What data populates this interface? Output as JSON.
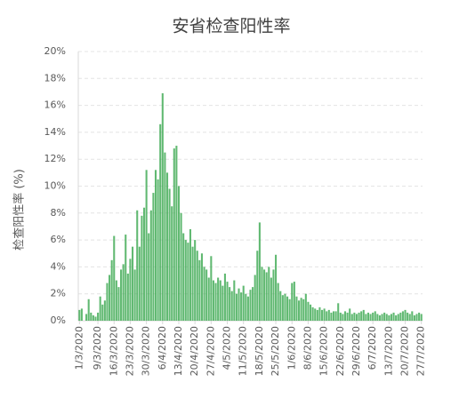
{
  "chart_data": {
    "type": "bar",
    "title": "安省检查阳性率",
    "y_label": "检查阳性率 (%)",
    "categories": [
      "1/3/2020",
      null,
      null,
      null,
      null,
      null,
      null,
      null,
      "9/3/2020",
      null,
      null,
      null,
      null,
      null,
      null,
      "16/3/2020",
      null,
      null,
      null,
      null,
      null,
      null,
      "23/3/2020",
      null,
      null,
      null,
      null,
      null,
      null,
      "30/3/2020",
      null,
      null,
      null,
      null,
      null,
      null,
      "6/4/2020",
      null,
      null,
      null,
      null,
      null,
      null,
      "13/4/2020",
      null,
      null,
      null,
      null,
      null,
      null,
      "20/4/2020",
      null,
      null,
      null,
      null,
      null,
      null,
      "27/4/2020",
      null,
      null,
      null,
      null,
      null,
      null,
      "4/5/2020",
      null,
      null,
      null,
      null,
      null,
      null,
      "11/5/2020",
      null,
      null,
      null,
      null,
      null,
      null,
      "18/5/2020",
      null,
      null,
      null,
      null,
      null,
      null,
      "25/5/2020",
      null,
      null,
      null,
      null,
      null,
      null,
      "1/6/2020",
      null,
      null,
      null,
      null,
      null,
      null,
      "8/6/2020",
      null,
      null,
      null,
      null,
      null,
      null,
      "15/6/2020",
      null,
      null,
      null,
      null,
      null,
      null,
      "22/6/2020",
      null,
      null,
      null,
      null,
      null,
      null,
      "29/6/2020",
      null,
      null,
      null,
      null,
      null,
      null,
      "6/7/2020",
      null,
      null,
      null,
      null,
      null,
      null,
      "13/7/2020",
      null,
      null,
      null,
      null,
      null,
      null,
      "20/7/2020",
      null,
      null,
      null,
      null,
      null,
      null,
      "27/7/2020"
    ],
    "values": [
      0.8,
      0.9,
      0,
      0.5,
      1.6,
      0.6,
      0.4,
      0.3,
      0.6,
      1.8,
      1.2,
      1.5,
      2.8,
      3.4,
      4.5,
      6.3,
      3.0,
      2.5,
      3.8,
      4.2,
      6.4,
      3.5,
      4.6,
      5.5,
      3.8,
      8.2,
      5.5,
      7.8,
      8.4,
      11.2,
      6.5,
      8.2,
      9.5,
      11.2,
      10.5,
      14.6,
      16.9,
      12.5,
      11.0,
      9.8,
      8.5,
      12.8,
      13.0,
      10.0,
      8.0,
      6.5,
      6.0,
      5.8,
      6.8,
      5.5,
      6.0,
      5.2,
      4.5,
      5.0,
      4.0,
      3.8,
      3.2,
      4.8,
      3.0,
      2.8,
      3.2,
      3.0,
      2.6,
      3.5,
      2.9,
      2.5,
      2.2,
      3.0,
      2.0,
      2.4,
      2.1,
      2.6,
      2.0,
      1.8,
      2.3,
      2.5,
      3.4,
      5.2,
      7.3,
      4.0,
      3.8,
      3.6,
      4.0,
      3.2,
      3.8,
      4.9,
      2.8,
      2.2,
      1.9,
      2.0,
      1.8,
      1.6,
      2.8,
      2.9,
      1.8,
      1.5,
      1.7,
      1.6,
      2.0,
      1.4,
      1.2,
      1.0,
      0.9,
      0.8,
      1.0,
      0.8,
      0.9,
      0.7,
      0.8,
      0.6,
      0.7,
      0.7,
      1.3,
      0.6,
      0.5,
      0.7,
      0.6,
      0.9,
      0.5,
      0.6,
      0.5,
      0.6,
      0.7,
      0.8,
      0.5,
      0.6,
      0.5,
      0.6,
      0.7,
      0.5,
      0.4,
      0.5,
      0.6,
      0.5,
      0.4,
      0.5,
      0.6,
      0.4,
      0.5,
      0.6,
      0.7,
      0.8,
      0.6,
      0.5,
      0.7,
      0.4,
      0.5,
      0.6,
      0.5
    ],
    "color": "#3aa84f",
    "ylim": [
      0,
      20
    ],
    "yticks": [
      {
        "value": 0,
        "label": "0%"
      },
      {
        "value": 2,
        "label": "2%"
      },
      {
        "value": 4,
        "label": "4%"
      },
      {
        "value": 6,
        "label": "6%"
      },
      {
        "value": 8,
        "label": "8%"
      },
      {
        "value": 10,
        "label": "10%"
      },
      {
        "value": 12,
        "label": "12%"
      },
      {
        "value": 14,
        "label": "14%"
      },
      {
        "value": 16,
        "label": "16%"
      },
      {
        "value": 18,
        "label": "18%"
      },
      {
        "value": 20,
        "label": "20%"
      }
    ],
    "grid": true
  }
}
